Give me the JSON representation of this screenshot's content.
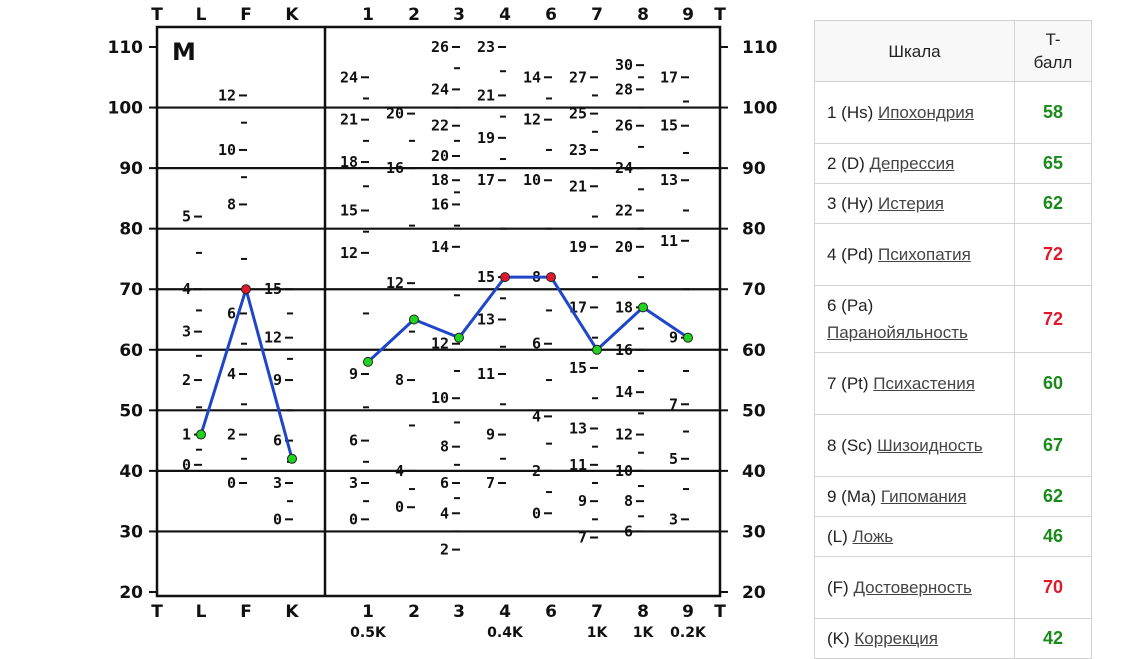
{
  "chart_data": {
    "type": "line",
    "title": "M",
    "t_label": "T",
    "ylim": [
      20,
      110
    ],
    "yticks": [
      20,
      30,
      40,
      50,
      60,
      70,
      80,
      90,
      100,
      110
    ],
    "tick_text": {
      "20": "20",
      "30": "30",
      "40": "40",
      "50": "50",
      "60": "60",
      "70": "70",
      "80": "80",
      "90": "90",
      "100": "100",
      "110": "110"
    },
    "columns": [
      "L",
      "F",
      "K",
      "1",
      "2",
      "3",
      "4",
      "6",
      "7",
      "8",
      "9"
    ],
    "bottom_labels": [
      "0.5K",
      "0.4K",
      "1K",
      "1K",
      "0.2K"
    ],
    "series": [
      {
        "segment": "validity",
        "x": [
          "L",
          "F",
          "K"
        ],
        "values": [
          46,
          70,
          42
        ]
      },
      {
        "segment": "clinical",
        "x": [
          "1",
          "2",
          "3",
          "4",
          "6",
          "7",
          "8",
          "9"
        ],
        "values": [
          58,
          65,
          62,
          72,
          72,
          60,
          67,
          62
        ]
      }
    ],
    "line_color": "#1f45c8",
    "normal_point_color": "#1fd31f",
    "elevated_point_color": "#e0182c",
    "raw_scores": [
      {
        "col": "L",
        "labels": [
          [
            "5",
            82
          ],
          [
            "4",
            70
          ],
          [
            "3",
            63
          ],
          [
            "2",
            55
          ],
          [
            "1",
            46
          ],
          [
            "0",
            41
          ]
        ]
      },
      {
        "col": "F",
        "labels": [
          [
            "12",
            102
          ],
          [
            "10",
            93
          ],
          [
            "8",
            84
          ],
          [
            "6",
            66
          ],
          [
            "4",
            56
          ],
          [
            "2",
            46
          ],
          [
            "0",
            38
          ]
        ]
      },
      {
        "col": "K",
        "labels": [
          [
            "15",
            70
          ],
          [
            "12",
            62
          ],
          [
            "9",
            55
          ],
          [
            "6",
            45
          ],
          [
            "3",
            38
          ],
          [
            "0",
            32
          ]
        ]
      },
      {
        "col": "1",
        "labels": [
          [
            "24",
            105
          ],
          [
            "21",
            98
          ],
          [
            "18",
            91
          ],
          [
            "15",
            83
          ],
          [
            "12",
            76
          ],
          [
            "9",
            56
          ],
          [
            "6",
            45
          ],
          [
            "3",
            38
          ],
          [
            "0",
            32
          ]
        ]
      },
      {
        "col": "2",
        "labels": [
          [
            "20",
            99
          ],
          [
            "16",
            90
          ],
          [
            "12",
            71
          ],
          [
            "8",
            55
          ],
          [
            "4",
            40
          ],
          [
            "0",
            34
          ]
        ]
      },
      {
        "col": "3",
        "labels": [
          [
            "26",
            110
          ],
          [
            "24",
            103
          ],
          [
            "22",
            97
          ],
          [
            "20",
            92
          ],
          [
            "18",
            88
          ],
          [
            "16",
            84
          ],
          [
            "14",
            77
          ],
          [
            "12",
            61
          ],
          [
            "10",
            52
          ],
          [
            "8",
            44
          ],
          [
            "6",
            38
          ],
          [
            "4",
            33
          ],
          [
            "2",
            27
          ]
        ]
      },
      {
        "col": "4",
        "labels": [
          [
            "23",
            110
          ],
          [
            "21",
            102
          ],
          [
            "19",
            95
          ],
          [
            "17",
            88
          ],
          [
            "15",
            72
          ],
          [
            "13",
            65
          ],
          [
            "11",
            56
          ],
          [
            "9",
            46
          ],
          [
            "7",
            38
          ]
        ]
      },
      {
        "col": "6",
        "labels": [
          [
            "14",
            105
          ],
          [
            "12",
            98
          ],
          [
            "10",
            88
          ],
          [
            "8",
            72
          ],
          [
            "6",
            61
          ],
          [
            "4",
            49
          ],
          [
            "2",
            40
          ],
          [
            "0",
            33
          ]
        ]
      },
      {
        "col": "7",
        "labels": [
          [
            "27",
            105
          ],
          [
            "25",
            99
          ],
          [
            "23",
            93
          ],
          [
            "21",
            87
          ],
          [
            "19",
            77
          ],
          [
            "17",
            67
          ],
          [
            "15",
            57
          ],
          [
            "13",
            47
          ],
          [
            "11",
            41
          ],
          [
            "9",
            35
          ],
          [
            "7",
            29
          ]
        ]
      },
      {
        "col": "8",
        "labels": [
          [
            "30",
            107
          ],
          [
            "28",
            103
          ],
          [
            "26",
            97
          ],
          [
            "24",
            90
          ],
          [
            "22",
            83
          ],
          [
            "20",
            77
          ],
          [
            "18",
            67
          ],
          [
            "16",
            60
          ],
          [
            "14",
            53
          ],
          [
            "12",
            46
          ],
          [
            "10",
            40
          ],
          [
            "8",
            35
          ],
          [
            "6",
            30
          ]
        ]
      },
      {
        "col": "9",
        "labels": [
          [
            "17",
            105
          ],
          [
            "15",
            97
          ],
          [
            "13",
            88
          ],
          [
            "11",
            78
          ],
          [
            "9",
            62
          ],
          [
            "7",
            51
          ],
          [
            "5",
            42
          ],
          [
            "3",
            32
          ]
        ]
      }
    ]
  },
  "table": {
    "header_scale": "Шкала",
    "header_score": "T-\nбалл",
    "rows": [
      {
        "code": "1 (Hs)",
        "name": "Ипохондрия",
        "score": "58",
        "color": "#1a8a1a"
      },
      {
        "code": "2 (D)",
        "name": "Депрессия",
        "score": "65",
        "color": "#1a8a1a"
      },
      {
        "code": "3 (Hy)",
        "name": "Истерия",
        "score": "62",
        "color": "#1a8a1a"
      },
      {
        "code": "4 (Pd)",
        "name": "Психопатия",
        "score": "72",
        "color": "#e0182c"
      },
      {
        "code": "6 (Pa)",
        "name": "Паранойяльность",
        "score": "72",
        "color": "#e0182c"
      },
      {
        "code": "7 (Pt)",
        "name": "Психастения",
        "score": "60",
        "color": "#1a8a1a"
      },
      {
        "code": "8 (Sc)",
        "name": "Шизоидность",
        "score": "67",
        "color": "#1a8a1a"
      },
      {
        "code": "9 (Ma)",
        "name": "Гипомания",
        "score": "62",
        "color": "#1a8a1a"
      },
      {
        "code": "(L)",
        "name": "Ложь",
        "score": "46",
        "color": "#1a8a1a"
      },
      {
        "code": "(F)",
        "name": "Достоверность",
        "score": "70",
        "color": "#e0182c"
      },
      {
        "code": "(K)",
        "name": "Коррекция",
        "score": "42",
        "color": "#1a8a1a"
      }
    ]
  }
}
